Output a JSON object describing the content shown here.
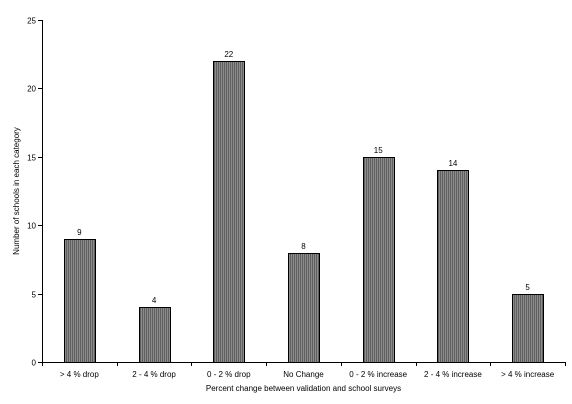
{
  "chart_data": {
    "type": "bar",
    "title": "",
    "xlabel": "Percent change between validation and school surveys",
    "ylabel": "Number of schools in each category",
    "categories": [
      "> 4 % drop",
      "2 - 4 % drop",
      "0 - 2 % drop",
      "No Change",
      "0 - 2 % increase",
      "2 - 4 % increase",
      "> 4 % increase"
    ],
    "values": [
      9,
      4,
      22,
      8,
      15,
      14,
      5
    ],
    "ylim": [
      0,
      25
    ],
    "yticks": [
      0,
      5,
      10,
      15,
      20,
      25
    ],
    "grid": false,
    "legend": "none",
    "data_labels": true,
    "bar_color": "#8c8c8c",
    "bar_stripe_color": "#5f5f5f",
    "axis_color": "#000000"
  }
}
